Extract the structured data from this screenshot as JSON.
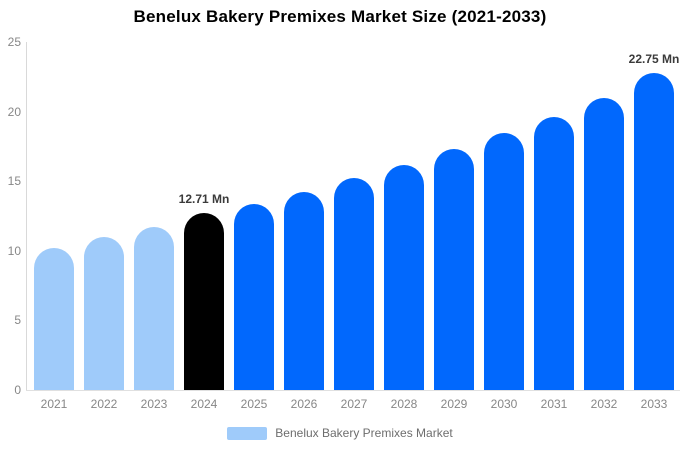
{
  "chart_data": {
    "type": "bar",
    "title": "Benelux Bakery Premixes Market Size (2021-2033)",
    "xlabel": "",
    "ylabel": "",
    "ylim": [
      0,
      25
    ],
    "y_ticks": [
      0,
      5,
      10,
      15,
      20,
      25
    ],
    "grid": false,
    "legend_position": "bottom",
    "legend_label": "Benelux Bakery Premixes Market",
    "categories": [
      "2021",
      "2022",
      "2023",
      "2024",
      "2025",
      "2026",
      "2027",
      "2028",
      "2029",
      "2030",
      "2031",
      "2032",
      "2033"
    ],
    "values": [
      10.2,
      11.0,
      11.7,
      12.71,
      13.4,
      14.25,
      15.2,
      16.2,
      17.3,
      18.45,
      19.65,
      21.0,
      22.75
    ],
    "bar_colors": [
      "#9FCBFA",
      "#9FCBFA",
      "#9FCBFA",
      "#000000",
      "#0168FD",
      "#0168FD",
      "#0168FD",
      "#0168FD",
      "#0168FD",
      "#0168FD",
      "#0168FD",
      "#0168FD",
      "#0168FD"
    ],
    "bar_value_labels": [
      "",
      "",
      "",
      "12.71 Mn",
      "",
      "",
      "",
      "",
      "",
      "",
      "",
      "",
      "22.75 Mn"
    ],
    "colors": {
      "historical_bar": "#9FCBFA",
      "base_year_bar": "#000000",
      "forecast_bar": "#0168FD",
      "axis_text": "#878787",
      "annotation_text": "#3b3b3b",
      "legend_text": "#6e6e6e",
      "axis_line": "#d9d9d9"
    }
  }
}
